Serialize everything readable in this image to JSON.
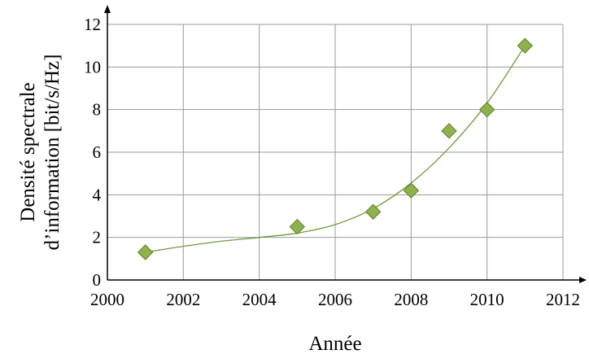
{
  "chart_data": {
    "type": "scatter",
    "title": "",
    "xlabel": "Année",
    "ylabel_lines": [
      "Densité spectrale",
      "d’information [bit/s/Hz]"
    ],
    "xlim": [
      2000,
      2012
    ],
    "ylim": [
      0,
      12
    ],
    "x_ticks": [
      2000,
      2002,
      2004,
      2006,
      2008,
      2010,
      2012
    ],
    "y_ticks": [
      0,
      2,
      4,
      6,
      8,
      10,
      12
    ],
    "grid": true,
    "legend": "none",
    "series": [
      {
        "x": [
          2001,
          2005,
          2007,
          2008,
          2009,
          2010,
          2011
        ],
        "values": [
          1.3,
          2.5,
          3.2,
          4.2,
          7.0,
          8.0,
          11.0
        ],
        "marker": "diamond",
        "color": "#8fb14b",
        "edge_color": "#5e7f2a"
      }
    ],
    "trendline": {
      "type": "smooth curve",
      "color": "#6f9a3a",
      "x": [
        2001,
        2002,
        2003,
        2004,
        2005,
        2006,
        2007,
        2008,
        2009,
        2010,
        2011
      ],
      "values": [
        1.3,
        1.58,
        1.82,
        2.0,
        2.2,
        2.6,
        3.35,
        4.55,
        6.2,
        8.3,
        11.0
      ]
    }
  }
}
